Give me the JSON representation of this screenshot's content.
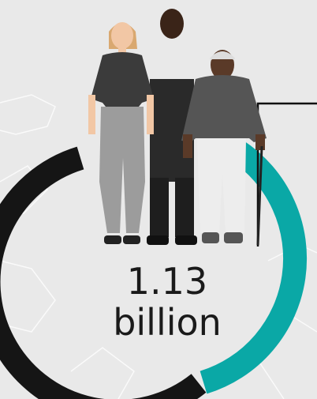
{
  "figure": {
    "value": "1.13",
    "unit": "billion"
  }
}
